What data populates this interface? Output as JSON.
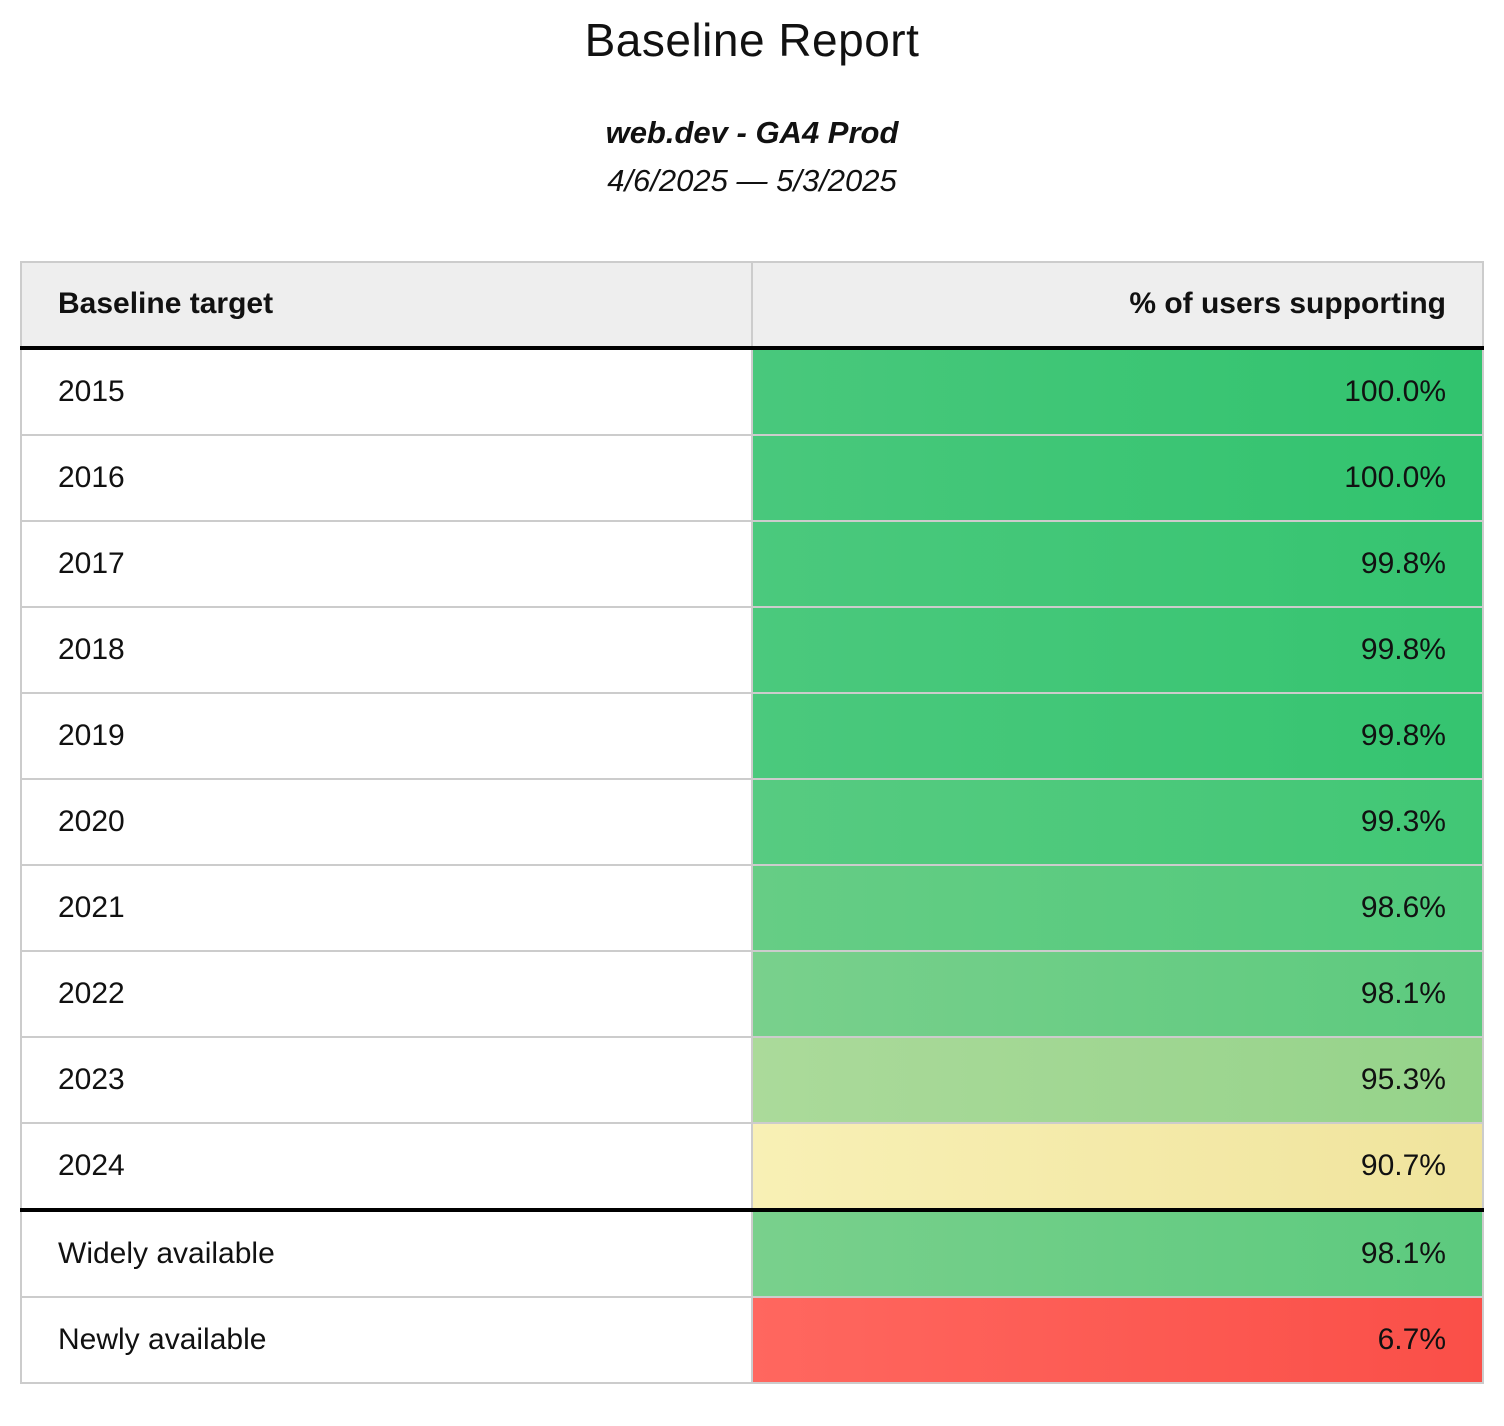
{
  "report": {
    "title": "Baseline Report",
    "subtitle": "web.dev - GA4 Prod",
    "date_range": "4/6/2025 — 5/3/2025"
  },
  "colors": {
    "header_bg": "#eeeeee",
    "row_border": "#cccccc",
    "section_divider": "#000000",
    "green_high": "#31c36e",
    "green_low": "#95d38a",
    "yellow": "#f0e49d",
    "red": "#fa4f48"
  },
  "table": {
    "columns": [
      {
        "label": "Baseline target"
      },
      {
        "label": "% of users supporting"
      }
    ],
    "rows": [
      {
        "target": "2015",
        "percent": "100.0%",
        "bg": {
          "from": "#49c87c",
          "to": "#31c36e"
        }
      },
      {
        "target": "2016",
        "percent": "100.0%",
        "bg": {
          "from": "#49c87c",
          "to": "#31c36e"
        }
      },
      {
        "target": "2017",
        "percent": "99.8%",
        "bg": {
          "from": "#4bc97d",
          "to": "#35c470"
        }
      },
      {
        "target": "2018",
        "percent": "99.8%",
        "bg": {
          "from": "#4bc97d",
          "to": "#35c470"
        }
      },
      {
        "target": "2019",
        "percent": "99.8%",
        "bg": {
          "from": "#4bc97d",
          "to": "#35c470"
        }
      },
      {
        "target": "2020",
        "percent": "99.3%",
        "bg": {
          "from": "#57cb81",
          "to": "#41c775"
        }
      },
      {
        "target": "2021",
        "percent": "98.6%",
        "bg": {
          "from": "#66cd85",
          "to": "#50c97b"
        }
      },
      {
        "target": "2022",
        "percent": "98.1%",
        "bg": {
          "from": "#79d08c",
          "to": "#5cca7e"
        }
      },
      {
        "target": "2023",
        "percent": "95.3%",
        "bg": {
          "from": "#abda9a",
          "to": "#95d38a"
        }
      },
      {
        "target": "2024",
        "percent": "90.7%",
        "bg": {
          "from": "#f8f0b5",
          "to": "#f0e49d"
        }
      },
      {
        "target": "Widely available",
        "percent": "98.1%",
        "bg": {
          "from": "#79d08c",
          "to": "#5cca7e"
        }
      },
      {
        "target": "Newly available",
        "percent": "6.7%",
        "bg": {
          "from": "#ff675f",
          "to": "#fa4f48"
        }
      }
    ]
  }
}
